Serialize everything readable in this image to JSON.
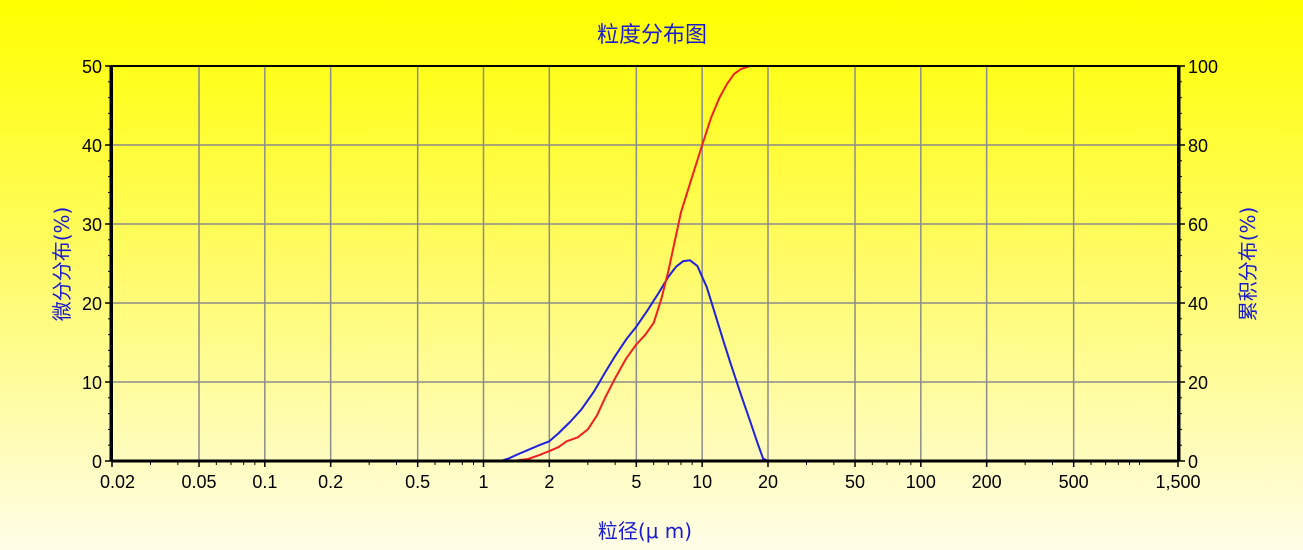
{
  "chart_data": {
    "type": "line",
    "title": "粒度分布图",
    "xlabel": "粒径(μ m)",
    "ylabel_left": "微分分布(%)",
    "ylabel_right": "累积分布(%)",
    "x_scale": "log",
    "xlim": [
      0.02,
      1500
    ],
    "ylim_left": [
      0,
      50
    ],
    "ylim_right": [
      0,
      100
    ],
    "grid": true,
    "x_ticks": [
      {
        "v": 0.02,
        "label": "0.02"
      },
      {
        "v": 0.05,
        "label": "0.05"
      },
      {
        "v": 0.1,
        "label": "0.1"
      },
      {
        "v": 0.2,
        "label": "0.2"
      },
      {
        "v": 0.5,
        "label": "0.5"
      },
      {
        "v": 1,
        "label": "1"
      },
      {
        "v": 2,
        "label": "2"
      },
      {
        "v": 5,
        "label": "5"
      },
      {
        "v": 10,
        "label": "10"
      },
      {
        "v": 20,
        "label": "20"
      },
      {
        "v": 50,
        "label": "50"
      },
      {
        "v": 100,
        "label": "100"
      },
      {
        "v": 200,
        "label": "200"
      },
      {
        "v": 500,
        "label": "500"
      },
      {
        "v": 1500,
        "label": "1,500"
      }
    ],
    "y_ticks_left": [
      0,
      10,
      20,
      30,
      40,
      50
    ],
    "y_ticks_right": [
      0,
      20,
      40,
      60,
      80,
      100
    ],
    "series": [
      {
        "axis": "left",
        "color": "#2020e0",
        "x": [
          0.02,
          1.2,
          1.3,
          1.45,
          1.6,
          1.8,
          2.0,
          2.2,
          2.5,
          2.8,
          3.2,
          3.6,
          4.0,
          4.5,
          5.0,
          5.6,
          6.3,
          7.0,
          7.6,
          8.2,
          8.8,
          9.5,
          10.5,
          11.5,
          12.5,
          13.5,
          15,
          16.5,
          18,
          19,
          20,
          1500
        ],
        "y": [
          0,
          0,
          0.3,
          0.9,
          1.4,
          2.0,
          2.5,
          3.5,
          5.0,
          6.5,
          8.8,
          11.2,
          13.3,
          15.4,
          17.0,
          19.0,
          21.2,
          23.3,
          24.6,
          25.3,
          25.4,
          24.7,
          22.0,
          18.5,
          15.2,
          12.3,
          8.5,
          5.2,
          2.1,
          0.3,
          0,
          0
        ]
      },
      {
        "axis": "right",
        "color": "#f02020",
        "x": [
          0.02,
          1.35,
          1.6,
          1.8,
          2.0,
          2.2,
          2.4,
          2.7,
          3.0,
          3.3,
          3.6,
          4.0,
          4.5,
          5.0,
          5.5,
          6.0,
          6.5,
          7.0,
          8.0,
          9.0,
          10,
          11,
          12,
          13,
          14,
          15,
          16.5,
          1500
        ],
        "y": [
          0,
          0,
          0.5,
          1.5,
          2.5,
          3.5,
          5.0,
          6.0,
          8.0,
          11.5,
          16.0,
          21.0,
          26.0,
          29.5,
          32.0,
          35.0,
          41.0,
          48.0,
          63.0,
          72.0,
          80.0,
          87.0,
          92.0,
          95.5,
          98.0,
          99.2,
          100.0,
          100.0
        ]
      }
    ]
  }
}
